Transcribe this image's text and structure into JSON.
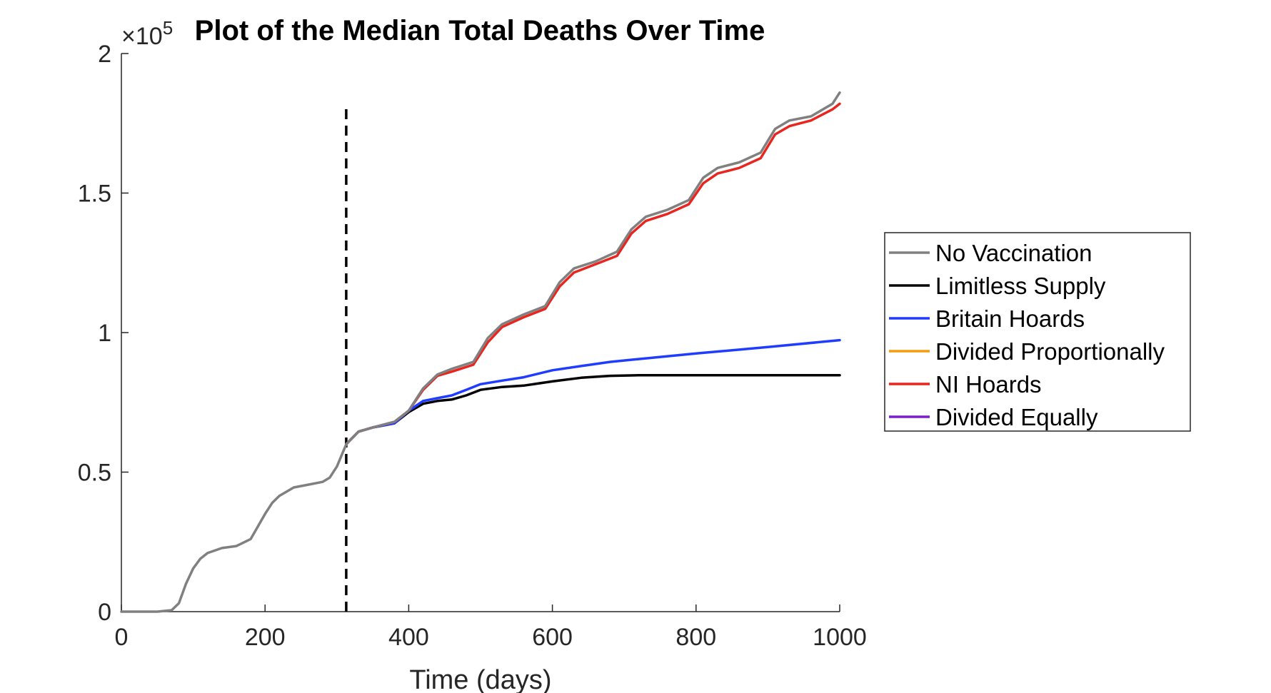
{
  "chart_data": {
    "type": "line",
    "title": "Plot of the Median Total Deaths Over Time",
    "xlabel": "Time (days)",
    "ylabel": "",
    "y_exponent_label": "×10",
    "y_exponent_power": "5",
    "xlim": [
      0,
      1000
    ],
    "ylim": [
      0,
      2
    ],
    "xticks": [
      0,
      200,
      400,
      600,
      800,
      1000
    ],
    "xtick_labels": [
      "0",
      "200",
      "400",
      "600",
      "800",
      "1000"
    ],
    "yticks": [
      0,
      0.5,
      1,
      1.5,
      2
    ],
    "ytick_labels": [
      "0",
      "0.5",
      "1",
      "1.5",
      "2"
    ],
    "grid": false,
    "legend_position": "outside-right",
    "vertical_marker": {
      "x": 313,
      "y_top": 1.82,
      "style": "dashed",
      "color": "#000000"
    },
    "series": [
      {
        "name": "No Vaccination",
        "color": "#808080",
        "x": [
          0,
          50,
          70,
          80,
          90,
          100,
          110,
          120,
          140,
          160,
          180,
          200,
          210,
          220,
          240,
          260,
          280,
          290,
          300,
          313,
          330,
          350,
          380,
          400,
          420,
          440,
          460,
          490,
          510,
          530,
          560,
          590,
          610,
          630,
          660,
          690,
          710,
          730,
          760,
          790,
          810,
          830,
          860,
          890,
          910,
          930,
          960,
          990,
          1000
        ],
        "values": [
          0,
          0,
          0.005,
          0.03,
          0.1,
          0.155,
          0.19,
          0.21,
          0.228,
          0.235,
          0.26,
          0.35,
          0.39,
          0.415,
          0.445,
          0.455,
          0.465,
          0.48,
          0.52,
          0.6,
          0.645,
          0.66,
          0.68,
          0.72,
          0.8,
          0.85,
          0.87,
          0.895,
          0.98,
          1.03,
          1.065,
          1.095,
          1.18,
          1.23,
          1.255,
          1.29,
          1.37,
          1.415,
          1.44,
          1.475,
          1.555,
          1.59,
          1.61,
          1.645,
          1.73,
          1.76,
          1.775,
          1.82,
          1.86
        ]
      },
      {
        "name": "Limitless Supply",
        "color": "#000000",
        "x": [
          313,
          330,
          350,
          380,
          400,
          420,
          440,
          460,
          480,
          500,
          530,
          560,
          600,
          640,
          680,
          720,
          800,
          900,
          1000
        ],
        "values": [
          0.6,
          0.645,
          0.66,
          0.675,
          0.715,
          0.745,
          0.755,
          0.76,
          0.775,
          0.795,
          0.805,
          0.81,
          0.825,
          0.838,
          0.845,
          0.847,
          0.847,
          0.847,
          0.847
        ]
      },
      {
        "name": "Britain Hoards",
        "color": "#1f3cff",
        "x": [
          313,
          330,
          350,
          380,
          400,
          420,
          440,
          460,
          480,
          500,
          530,
          560,
          600,
          640,
          680,
          720,
          800,
          900,
          1000
        ],
        "values": [
          0.6,
          0.645,
          0.66,
          0.675,
          0.72,
          0.755,
          0.765,
          0.775,
          0.795,
          0.815,
          0.828,
          0.84,
          0.865,
          0.88,
          0.895,
          0.905,
          0.925,
          0.948,
          0.973
        ]
      },
      {
        "name": "Divided Proportionally",
        "color": "#f39c12",
        "x": [],
        "values": []
      },
      {
        "name": "NI Hoards",
        "color": "#e8251e",
        "x": [
          313,
          330,
          350,
          380,
          400,
          420,
          440,
          460,
          490,
          510,
          530,
          560,
          590,
          610,
          630,
          660,
          690,
          710,
          730,
          760,
          790,
          810,
          830,
          860,
          890,
          910,
          930,
          960,
          990,
          1000
        ],
        "values": [
          0.6,
          0.645,
          0.66,
          0.68,
          0.72,
          0.795,
          0.845,
          0.86,
          0.885,
          0.965,
          1.02,
          1.055,
          1.085,
          1.165,
          1.215,
          1.245,
          1.275,
          1.355,
          1.4,
          1.425,
          1.46,
          1.535,
          1.57,
          1.59,
          1.625,
          1.71,
          1.74,
          1.76,
          1.8,
          1.82
        ]
      },
      {
        "name": "Divided Equally",
        "color": "#7b1fc8",
        "x": [],
        "values": []
      }
    ]
  }
}
